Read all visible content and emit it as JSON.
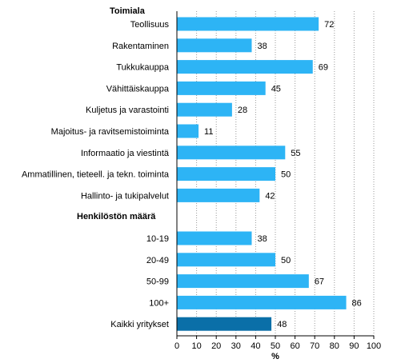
{
  "chart_data": {
    "type": "bar",
    "orientation": "horizontal",
    "xlabel": "%",
    "xlim": [
      0,
      100
    ],
    "xticks": [
      0,
      10,
      20,
      30,
      40,
      50,
      60,
      70,
      80,
      90,
      100
    ],
    "grid": "vertical dotted",
    "groups": [
      {
        "title": "Toimiala",
        "categories": [
          "Teollisuus",
          "Rakentaminen",
          "Tukkukauppa",
          "Vähittäiskauppa",
          "Kuljetus ja varastointi",
          "Majoitus- ja ravitsemistoiminta",
          "Informaatio ja viestintä",
          "Ammatillinen, tieteell. ja tekn. toiminta",
          "Hallinto- ja tukipalvelut"
        ],
        "values": [
          72,
          38,
          69,
          45,
          28,
          11,
          55,
          50,
          42
        ]
      },
      {
        "title": "Henkilöstön määrä",
        "categories": [
          "10-19",
          "20-49",
          "50-99",
          "100+"
        ],
        "values": [
          38,
          50,
          67,
          86
        ]
      },
      {
        "title": "",
        "categories": [
          "Kaikki yritykset"
        ],
        "values": [
          48
        ],
        "highlight": true
      }
    ],
    "colors": {
      "bar": "#2db4f5",
      "highlight": "#0a6fa8",
      "grid": "#9a9a9a",
      "axis": "#000000"
    }
  }
}
